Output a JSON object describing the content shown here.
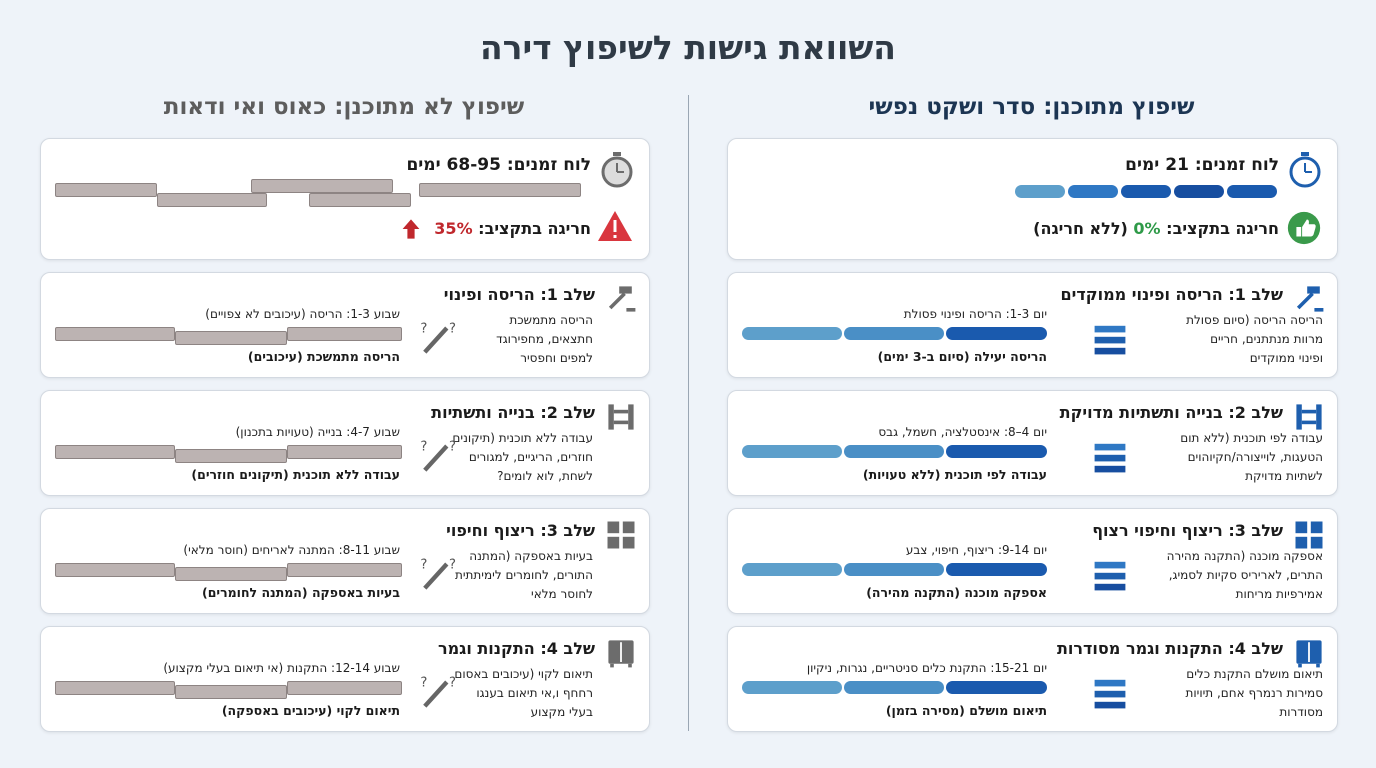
{
  "title": "השוואת גישות לשיפוץ דירה",
  "columns": [
    {
      "header": "שיפוץ מתוכנן: סדר ושקט נפשי",
      "summary": {
        "timeline": "לוח זמנים: 21 ימים",
        "budget_label": "חריגה בתקציב:",
        "budget_value": "0%",
        "budget_note": "(ללא חריגה)"
      },
      "stages": [
        {
          "title": "שלב 1: הריסה ופינוי ממוקדים",
          "description": [
            "הריסה הריסה (סיום פסולת",
            "מרוות מנתתנים, חריים",
            "ופינוי ממוקדים"
          ],
          "bar_label": "יום 1-3: הריסה ופינוי פסולת",
          "footer": "הריסה יעילה (סיום ב-3 ימים)"
        },
        {
          "title": "שלב 2: בנייה ותשתיות מדויקת",
          "description": [
            "עבודה לפי תוכנית (ללא תום",
            "הטעגות, לוייצורה/חקיוהוים",
            "לשתיות מדויקת"
          ],
          "bar_label": "יום 4–8: אינסטלציה, חשמל, גבס",
          "footer": "עבודה לפי תוכנית (ללא טעויות)"
        },
        {
          "title": "שלב 3: ריצוף וחיפוי רצוף",
          "description": [
            "אספקה מוכנה (התקנה מהירה",
            "התרים, לאריריס סקיות לסמיג,",
            "אמירפיות מריחות"
          ],
          "bar_label": "יום 9-14: ריצוף, חיפוי, צבע",
          "footer": "אספקה מוכנה (התקנה מהירה)"
        },
        {
          "title": "שלב 4: התקנות וגמר מסודרות",
          "description": [
            "תיאום מושלם התקנת כלים",
            "סמירות רנמרף אחם, תיויות",
            "מסודרות"
          ],
          "bar_label": "יום 15-21: התקנת כלים סניטריים, נגרות, ניקיון",
          "footer": "תיאום מושלם (מסירה בזמן)"
        }
      ]
    },
    {
      "header": "שיפוץ לא מתוכנן: כאוס ואי ודאות",
      "summary": {
        "timeline": "לוח זמנים: 68-95 ימים",
        "budget_label": "חריגה בתקציב:",
        "budget_value": "35%"
      },
      "stages": [
        {
          "title": "שלב 1: הריסה ופינוי",
          "description": [
            "הריסה מתמשכת",
            "חתצאים, מחפירוגד",
            "למפים וחפסיר"
          ],
          "bar_label": "שבוע 1-3: הריסה (עיכובים לא צפויים)",
          "footer": "הריסה מתמשכת (עיכובים)"
        },
        {
          "title": "שלב 2: בנייה ותשתיות",
          "description": [
            "עבודה ללא תוכנית (תיקונים",
            "חוזרים, הריגיים, למגורים",
            "לשחת, לוא לומים?"
          ],
          "bar_label": "שבוע 4-7: בנייה (טעויות בתכנון)",
          "footer": "עבודה ללא תוכנית (תיקונים חוזרים)"
        },
        {
          "title": "שלב 3: ריצוף וחיפוי",
          "description": [
            "בעיות באספקה (המתנה",
            "התורים, לחומרים לימיתתית",
            "לחוסר מלאי"
          ],
          "bar_label": "שבוע 8-11: המתנה לאריחים (חוסר מלאי)",
          "footer": "בעיות באספקה (המתנה לחומרים)"
        },
        {
          "title": "שלב 4: התקנות וגמר",
          "description": [
            "תיאום לקוי (עיכובים באסום",
            "רחחף ו,אי תיאום בענגו",
            "בעלי מקצוע"
          ],
          "bar_label": "שבוע 12-14: התקנות (אי תיאום בעלי מקצוע)",
          "footer": "תיאום לקוי (עיכובים באספקה)"
        }
      ]
    }
  ]
}
